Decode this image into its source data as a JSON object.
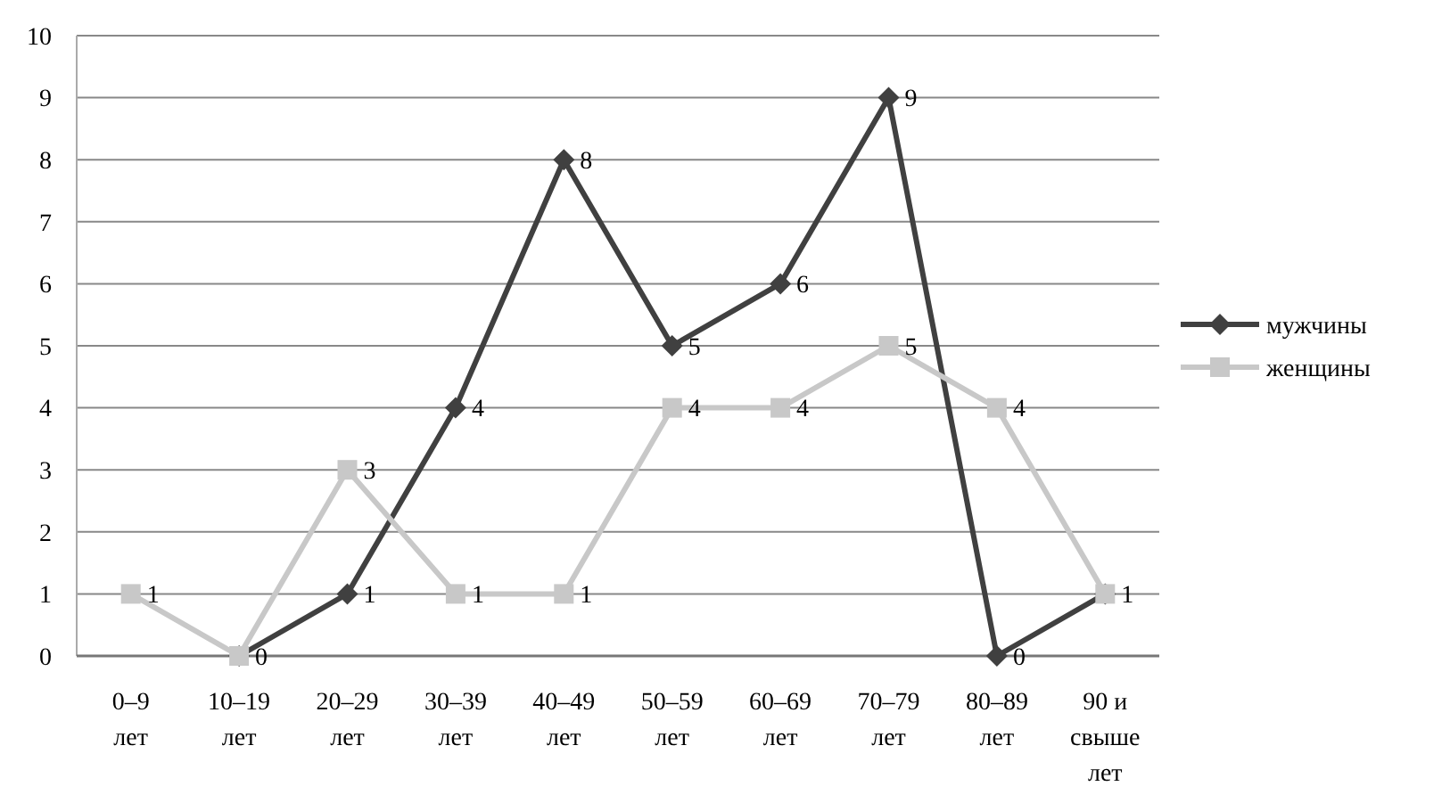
{
  "chart_data": {
    "type": "line",
    "categories": [
      "0–9 лет",
      "10–19 лет",
      "20–29 лет",
      "30–39 лет",
      "40–49 лет",
      "50–59 лет",
      "60–69 лет",
      "70–79 лет",
      "80–89 лет",
      "90 и свыше лет"
    ],
    "series": [
      {
        "name": "мужчины",
        "color": "#404040",
        "marker": "diamond",
        "values": [
          null,
          0,
          1,
          4,
          8,
          5,
          6,
          9,
          0,
          1
        ],
        "value_labels": [
          null,
          "0",
          "1",
          "4",
          "8",
          "5",
          "6",
          "9",
          "0",
          "1"
        ]
      },
      {
        "name": "женщины",
        "color": "#c8c8c8",
        "marker": "square",
        "values": [
          1,
          0,
          3,
          1,
          1,
          4,
          4,
          5,
          4,
          1
        ],
        "value_labels": [
          "1",
          null,
          "3",
          "1",
          "1",
          "4",
          "4",
          "5",
          "4",
          null
        ]
      }
    ],
    "ylim": [
      0,
      10
    ],
    "yticks": [
      0,
      1,
      2,
      3,
      4,
      5,
      6,
      7,
      8,
      9,
      10
    ],
    "grid": "y",
    "legend": "right"
  }
}
